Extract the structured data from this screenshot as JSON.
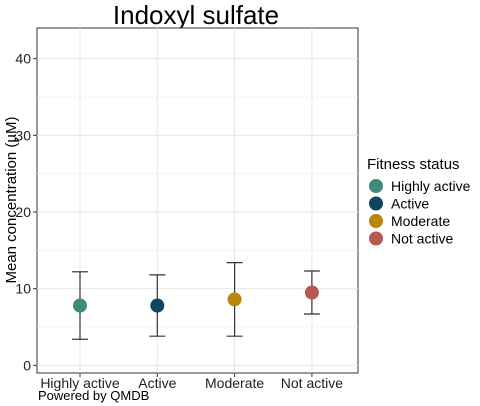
{
  "chart_data": {
    "type": "scatter",
    "title": "Indoxyl sulfate",
    "xlabel": "",
    "ylabel": "Mean concentration (µM)",
    "categories": [
      "Highly active",
      "Active",
      "Moderate",
      "Not active"
    ],
    "ylim": [
      -1,
      44
    ],
    "yticks": [
      0,
      10,
      20,
      30,
      40
    ],
    "grid": true,
    "points": [
      {
        "category": "Highly active",
        "mean": 7.8,
        "lower": 3.4,
        "upper": 12.2,
        "color": "#3E8A7C"
      },
      {
        "category": "Active",
        "mean": 7.8,
        "lower": 3.8,
        "upper": 11.8,
        "color": "#0E4560"
      },
      {
        "category": "Moderate",
        "mean": 8.6,
        "lower": 3.8,
        "upper": 13.4,
        "color": "#B8860B"
      },
      {
        "category": "Not active",
        "mean": 9.5,
        "lower": 6.7,
        "upper": 12.3,
        "color": "#B65A50"
      }
    ],
    "legend": {
      "title": "Fitness status",
      "position": "right",
      "items": [
        {
          "label": "Highly active",
          "color": "#3E8A7C"
        },
        {
          "label": "Active",
          "color": "#0E4560"
        },
        {
          "label": "Moderate",
          "color": "#B8860B"
        },
        {
          "label": "Not active",
          "color": "#B65A50"
        }
      ]
    }
  },
  "footer": {
    "text": "Powered by QMDB"
  }
}
